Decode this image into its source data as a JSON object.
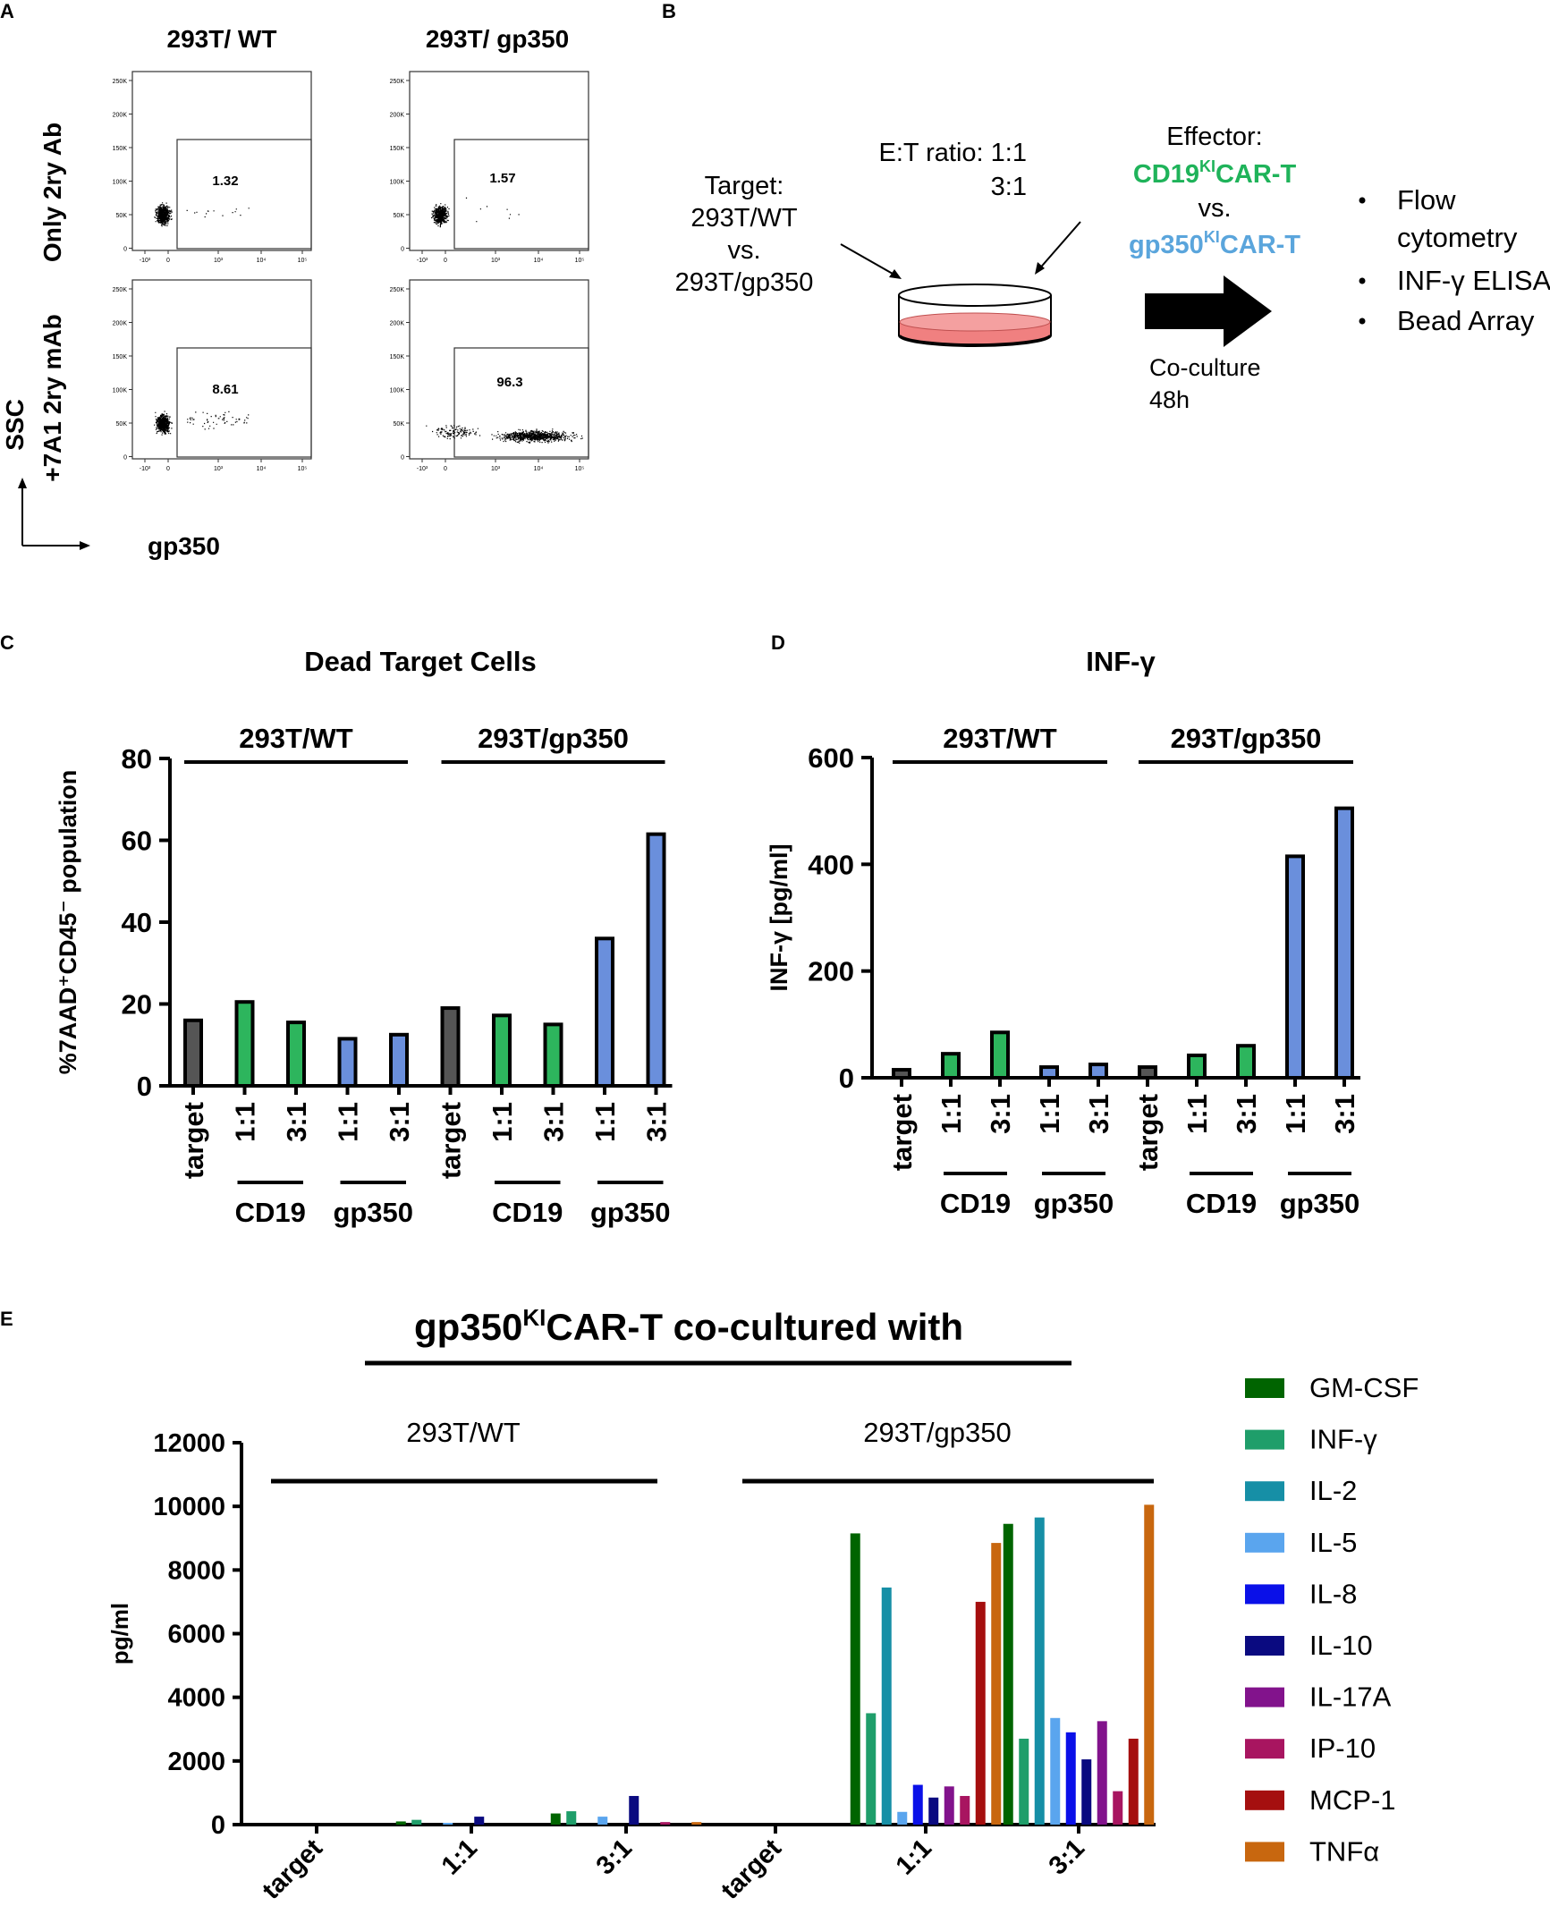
{
  "panel_a": {
    "letter": "A",
    "col_titles": [
      "293T/ WT",
      "293T/ gp350"
    ],
    "row_titles": [
      "Only 2ry Ab",
      "+7A1 2ry mAb"
    ],
    "y_axis": "SSC",
    "x_axis": "gp350",
    "y_ticks": [
      "250K",
      "200K",
      "150K",
      "100K",
      "50K",
      "0"
    ],
    "x_ticks": [
      "-10³",
      "0",
      "10³",
      "10⁴",
      "10⁵"
    ],
    "gate_values": [
      "1.32",
      "1.57",
      "8.61",
      "96.3"
    ]
  },
  "panel_b": {
    "letter": "B",
    "target_lines": [
      "Target:",
      "293T/WT",
      "vs.",
      "293T/gp350"
    ],
    "ratio_lines": [
      "E:T ratio: 1:1",
      "3:1"
    ],
    "effector_label": "Effector:",
    "cd19_car": {
      "pre": "CD19",
      "sup": "KI",
      "post": "CAR-T"
    },
    "vs_label": "vs.",
    "gp350_car": {
      "pre": "gp350",
      "sup": "KI",
      "post": "CAR-T"
    },
    "coculture_lines": [
      "Co-culture",
      "48h"
    ],
    "readouts": [
      "Flow",
      "cytometry",
      "INF-γ ELISA",
      "Bead Array"
    ],
    "colors": {
      "green": "#1fb35a",
      "blue": "#5aa5dc",
      "dish": "#f08080"
    }
  },
  "panel_c": {
    "letter": "C",
    "chart_data": {
      "type": "bar",
      "title": "Dead Target Cells",
      "ylabel": "%7AAD⁺CD45⁻ population",
      "ylim": [
        0,
        80
      ],
      "yticks": [
        "0",
        "20",
        "40",
        "60",
        "80"
      ],
      "group_labels": [
        "293T/WT",
        "293T/gp350"
      ],
      "categories": [
        "target",
        "1:1",
        "3:1",
        "1:1",
        "3:1",
        "target",
        "1:1",
        "3:1",
        "1:1",
        "3:1"
      ],
      "values": [
        16,
        20.5,
        15.5,
        11.5,
        12.5,
        19,
        17.2,
        15,
        36,
        61.5
      ],
      "sub_labels": [
        "CD19",
        "gp350",
        "CD19",
        "gp350"
      ],
      "bar_colors": [
        "#555555",
        "#2db55d",
        "#2db55d",
        "#6a8fdc",
        "#6a8fdc",
        "#555555",
        "#2db55d",
        "#2db55d",
        "#6a8fdc",
        "#6a8fdc"
      ]
    }
  },
  "panel_d": {
    "letter": "D",
    "chart_data": {
      "type": "bar",
      "title": "INF-γ",
      "ylabel": "INF-γ [pg/ml]",
      "ylim": [
        0,
        600
      ],
      "yticks": [
        "0",
        "200",
        "400",
        "600"
      ],
      "group_labels": [
        "293T/WT",
        "293T/gp350"
      ],
      "categories": [
        "target",
        "1:1",
        "3:1",
        "1:1",
        "3:1",
        "target",
        "1:1",
        "3:1",
        "1:1",
        "3:1"
      ],
      "values": [
        15,
        45,
        85,
        20,
        25,
        20,
        42,
        60,
        415,
        505
      ],
      "sub_labels": [
        "CD19",
        "gp350",
        "CD19",
        "gp350"
      ],
      "bar_colors": [
        "#555555",
        "#2db55d",
        "#2db55d",
        "#6a8fdc",
        "#6a8fdc",
        "#555555",
        "#2db55d",
        "#2db55d",
        "#6a8fdc",
        "#6a8fdc"
      ]
    }
  },
  "panel_e": {
    "letter": "E",
    "chart_data": {
      "type": "bar",
      "title_pre": "gp350",
      "title_sup": "KI",
      "title_post": "CAR-T   co-cultured with",
      "ylabel": "pg/ml",
      "ylim": [
        0,
        12000
      ],
      "yticks": [
        "0",
        "2000",
        "4000",
        "6000",
        "8000",
        "10000",
        "12000"
      ],
      "group_labels": [
        "293T/WT",
        "293T/gp350"
      ],
      "categories": [
        "target",
        "1:1",
        "3:1",
        "target",
        "1:1",
        "3:1"
      ],
      "series": [
        {
          "name": "GM-CSF",
          "color": "#006400",
          "values": [
            0,
            100,
            350,
            0,
            9150,
            9450
          ]
        },
        {
          "name": "INF-γ",
          "color": "#1f9e6a",
          "values": [
            0,
            150,
            420,
            0,
            3500,
            2700
          ]
        },
        {
          "name": "IL-2",
          "color": "#168fa6",
          "values": [
            0,
            0,
            0,
            0,
            7450,
            9650
          ]
        },
        {
          "name": "IL-5",
          "color": "#5aa5ee",
          "values": [
            0,
            30,
            250,
            0,
            400,
            3350
          ]
        },
        {
          "name": "IL-8",
          "color": "#0a10e8",
          "values": [
            0,
            0,
            0,
            0,
            1250,
            2900
          ]
        },
        {
          "name": "IL-10",
          "color": "#0a0a80",
          "values": [
            0,
            250,
            900,
            0,
            850,
            2050
          ]
        },
        {
          "name": "IL-17A",
          "color": "#82138c",
          "values": [
            0,
            0,
            0,
            0,
            1200,
            3250
          ]
        },
        {
          "name": "IP-10",
          "color": "#a81560",
          "values": [
            0,
            0,
            80,
            0,
            900,
            1050
          ]
        },
        {
          "name": "MCP-1",
          "color": "#a50f0f",
          "values": [
            0,
            0,
            0,
            0,
            7000,
            2700
          ]
        },
        {
          "name": "TNFα",
          "color": "#c8670f",
          "values": [
            0,
            0,
            80,
            0,
            8850,
            10050
          ]
        }
      ]
    }
  }
}
